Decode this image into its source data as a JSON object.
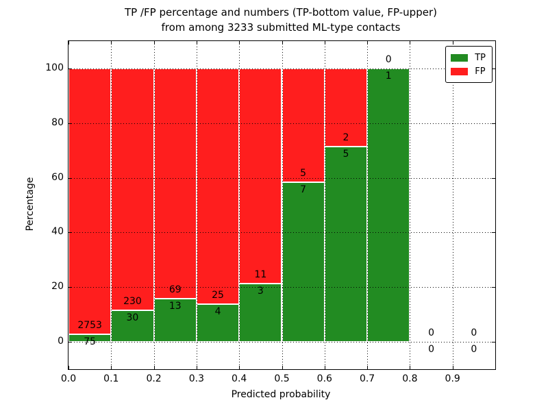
{
  "title": {
    "line1": "TP /FP percentage and numbers (TP-bottom value, FP-upper)",
    "line2": "from among 3233 submitted ML-type contacts"
  },
  "chart_data": {
    "type": "bar",
    "variant": "stacked-percentage-histogram",
    "title": "TP /FP percentage and numbers (TP-bottom value, FP-upper)\nfrom among 3233 submitted ML-type contacts",
    "xlabel": "Predicted probability",
    "ylabel": "Percentage",
    "total_contacts": 3233,
    "xlim": [
      0.0,
      1.0
    ],
    "ylim": [
      -10,
      110
    ],
    "bin_width": 0.1,
    "bin_starts": [
      0.0,
      0.1,
      0.2,
      0.3,
      0.4,
      0.5,
      0.6,
      0.7,
      0.8,
      0.9
    ],
    "xticks": [
      "0.0",
      "0.1",
      "0.2",
      "0.3",
      "0.4",
      "0.5",
      "0.6",
      "0.7",
      "0.8",
      "0.9"
    ],
    "yticks": [
      0,
      20,
      40,
      60,
      80,
      100
    ],
    "grid": "dotted",
    "series": [
      {
        "name": "TP",
        "color": "#228b22",
        "counts": [
          75,
          30,
          13,
          4,
          3,
          7,
          5,
          1,
          0,
          0
        ]
      },
      {
        "name": "FP",
        "color": "#ff1e1e",
        "counts": [
          2753,
          230,
          69,
          25,
          11,
          5,
          2,
          0,
          0,
          0
        ]
      }
    ],
    "tp_percent": [
      2.65,
      11.54,
      15.85,
      13.79,
      21.43,
      58.33,
      71.43,
      100.0,
      0.0,
      0.0
    ],
    "legend": {
      "position": "upper right",
      "entries": [
        {
          "label": "TP",
          "color": "#228b22"
        },
        {
          "label": "FP",
          "color": "#ff1e1e"
        }
      ]
    }
  },
  "colors": {
    "tp": "#228b22",
    "fp": "#ff1e1e",
    "grid": "#000000",
    "background": "#ffffff"
  }
}
